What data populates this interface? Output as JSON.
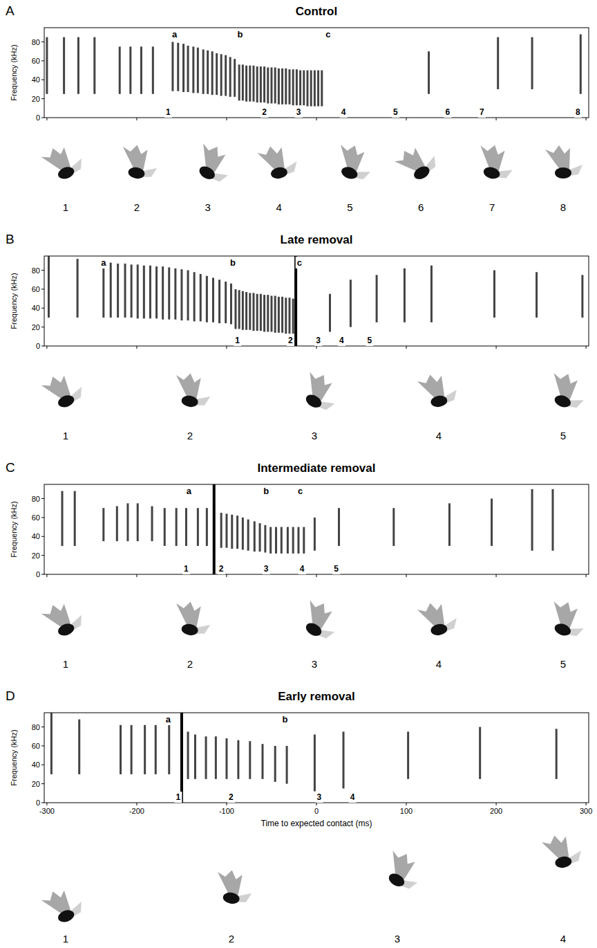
{
  "chart_data": [
    {
      "type": "spectrogram",
      "panel": "A",
      "title": "Control",
      "y_label": "Frequency (kHz)",
      "xlim": [
        -303,
        303
      ],
      "ylim": [
        0,
        95
      ],
      "xticks": [
        -300,
        -200,
        -100,
        0,
        100,
        200,
        300
      ],
      "yticks": [
        0,
        20,
        40,
        60,
        80
      ],
      "tick_labels": "y",
      "color": "#222222",
      "calls": {
        "x": [
          -300,
          -281,
          -265,
          -247,
          -219,
          -207,
          -195,
          -182,
          -160,
          -154,
          -148,
          -143,
          -137,
          -132,
          -126,
          -121,
          -116,
          -111,
          -106,
          -101,
          -96,
          -91,
          -86,
          -82,
          -78,
          -74,
          -70,
          -66,
          -62,
          -58,
          -54,
          -50,
          -46,
          -42,
          -38,
          -34,
          -30,
          -26,
          -22,
          -18,
          -14,
          -10,
          -6,
          -2,
          2,
          6,
          125,
          202,
          240,
          294
        ],
        "f_low": [
          25,
          25,
          25,
          25,
          25,
          25,
          25,
          25,
          28,
          28,
          27,
          27,
          26,
          26,
          25,
          25,
          24,
          24,
          23,
          23,
          22,
          22,
          18,
          18,
          17,
          17,
          17,
          16,
          16,
          16,
          15,
          15,
          15,
          14,
          14,
          14,
          14,
          13,
          13,
          13,
          13,
          12,
          12,
          12,
          12,
          12,
          25,
          30,
          30,
          25
        ],
        "f_high": [
          85,
          85,
          85,
          85,
          75,
          75,
          75,
          75,
          80,
          79,
          78,
          76,
          75,
          74,
          72,
          71,
          70,
          68,
          67,
          66,
          64,
          62,
          56,
          56,
          55,
          55,
          55,
          54,
          54,
          54,
          53,
          53,
          53,
          52,
          52,
          52,
          51,
          51,
          51,
          50,
          50,
          50,
          50,
          50,
          50,
          50,
          70,
          85,
          85,
          88
        ]
      },
      "phase_labels": {
        "labels": [
          "a",
          "b",
          "c"
        ],
        "x": [
          -158,
          -85,
          13
        ]
      },
      "frame_labels": {
        "labels": [
          "1",
          "2",
          "3",
          "4",
          "5",
          "6",
          "7",
          "8"
        ],
        "x": [
          -165,
          -58,
          -20,
          30,
          88,
          146,
          184,
          291
        ]
      },
      "silhouette_labels": [
        "1",
        "2",
        "3",
        "4",
        "5",
        "6",
        "7",
        "8"
      ]
    },
    {
      "type": "spectrogram",
      "panel": "B",
      "title": "Late removal",
      "y_label": "Frequency (kHz)",
      "xlim": [
        -303,
        303
      ],
      "ylim": [
        0,
        95
      ],
      "xticks": [
        -300,
        -200,
        -100,
        0,
        100,
        200,
        300
      ],
      "yticks": [
        0,
        20,
        40,
        60,
        80
      ],
      "tick_labels": "y",
      "color": "#222222",
      "removal": -23,
      "calls": {
        "x": [
          -298,
          -266,
          -237,
          -229,
          -221,
          -213,
          -206,
          -199,
          -192,
          -185,
          -178,
          -171,
          -164,
          -157,
          -150,
          -143,
          -136,
          -129,
          -122,
          -115,
          -108,
          -101,
          -95,
          -90,
          -86,
          -82,
          -78,
          -74,
          -70,
          -66,
          -62,
          -58,
          -54,
          -50,
          -46,
          -42,
          -38,
          -34,
          -30,
          -26,
          15,
          38,
          67,
          98,
          128,
          198,
          245,
          296
        ],
        "f_low": [
          30,
          30,
          30,
          30,
          30,
          30,
          30,
          29,
          29,
          29,
          29,
          28,
          28,
          28,
          27,
          27,
          26,
          26,
          25,
          25,
          24,
          24,
          23,
          18,
          18,
          17,
          17,
          17,
          16,
          16,
          16,
          15,
          15,
          15,
          14,
          14,
          14,
          13,
          13,
          13,
          15,
          20,
          25,
          25,
          25,
          30,
          30,
          30
        ],
        "f_high": [
          95,
          92,
          88,
          88,
          87,
          87,
          86,
          86,
          85,
          85,
          84,
          84,
          83,
          82,
          81,
          80,
          78,
          76,
          74,
          72,
          70,
          68,
          66,
          60,
          59,
          58,
          57,
          56,
          56,
          55,
          55,
          54,
          54,
          53,
          53,
          52,
          52,
          51,
          51,
          50,
          55,
          70,
          75,
          82,
          85,
          80,
          78,
          75
        ]
      },
      "phase_labels": {
        "labels": [
          "a",
          "b",
          "c"
        ],
        "x": [
          -237,
          -93,
          -19
        ]
      },
      "frame_labels": {
        "labels": [
          "1",
          "2",
          "3",
          "4",
          "5"
        ],
        "x": [
          -88,
          -29,
          2,
          28,
          59
        ]
      },
      "silhouette_labels": [
        "1",
        "2",
        "3",
        "4",
        "5"
      ]
    },
    {
      "type": "spectrogram",
      "panel": "C",
      "title": "Intermediate removal",
      "y_label": "Frequency (kHz)",
      "xlim": [
        -303,
        303
      ],
      "ylim": [
        0,
        95
      ],
      "xticks": [
        -300,
        -200,
        -100,
        0,
        100,
        200,
        300
      ],
      "yticks": [
        0,
        20,
        40,
        60,
        80
      ],
      "tick_labels": "y",
      "color": "#222222",
      "removal": -114,
      "calls": {
        "x": [
          -283,
          -269,
          -237,
          -222,
          -210,
          -199,
          -183,
          -169,
          -156,
          -145,
          -132,
          -122,
          -106,
          -100,
          -94,
          -88,
          -82,
          -76,
          -69,
          -63,
          -57,
          -51,
          -45,
          -39,
          -32,
          -26,
          -20,
          -14,
          -2,
          25,
          86,
          148,
          195,
          240,
          263
        ],
        "f_low": [
          30,
          30,
          35,
          35,
          35,
          35,
          35,
          30,
          30,
          30,
          30,
          30,
          28,
          28,
          27,
          27,
          26,
          25,
          24,
          24,
          23,
          22,
          22,
          22,
          22,
          22,
          22,
          22,
          25,
          30,
          30,
          30,
          30,
          25,
          25
        ],
        "f_high": [
          88,
          88,
          70,
          72,
          75,
          75,
          72,
          70,
          70,
          70,
          70,
          70,
          65,
          64,
          63,
          62,
          60,
          58,
          56,
          54,
          52,
          50,
          50,
          50,
          50,
          50,
          50,
          50,
          60,
          70,
          70,
          75,
          80,
          90,
          90
        ]
      },
      "phase_labels": {
        "labels": [
          "a",
          "b",
          "c"
        ],
        "x": [
          -142,
          -56,
          -18
        ]
      },
      "frame_labels": {
        "labels": [
          "1",
          "2",
          "3",
          "4",
          "5"
        ],
        "x": [
          -145,
          -106,
          -56,
          -16,
          22
        ]
      },
      "silhouette_labels": [
        "1",
        "2",
        "3",
        "4",
        "5"
      ]
    },
    {
      "type": "spectrogram",
      "panel": "D",
      "title": "Early removal",
      "y_label": "Frequency (kHz)",
      "x_label": "Time to expected contact (ms)",
      "xlim": [
        -303,
        303
      ],
      "ylim": [
        0,
        95
      ],
      "xticks": [
        -300,
        -200,
        -100,
        0,
        100,
        200,
        300
      ],
      "yticks": [
        0,
        20,
        40,
        60,
        80
      ],
      "tick_labels": true,
      "color": "#222222",
      "removal": -150,
      "calls": {
        "x": [
          -295,
          -264,
          -218,
          -206,
          -191,
          -179,
          -164,
          -143,
          -135,
          -123,
          -112,
          -100,
          -87,
          -74,
          -60,
          -46,
          -33,
          -2,
          30,
          102,
          182,
          267
        ],
        "f_low": [
          30,
          30,
          30,
          30,
          30,
          30,
          30,
          25,
          25,
          25,
          25,
          25,
          25,
          25,
          25,
          22,
          20,
          12,
          15,
          25,
          25,
          25
        ],
        "f_high": [
          95,
          88,
          82,
          82,
          82,
          82,
          85,
          75,
          72,
          70,
          70,
          68,
          66,
          65,
          62,
          60,
          60,
          72,
          75,
          75,
          80,
          78
        ]
      },
      "phase_labels": {
        "labels": [
          "a",
          "b"
        ],
        "x": [
          -165,
          -35
        ]
      },
      "frame_labels": {
        "labels": [
          "1",
          "2",
          "3",
          "4"
        ],
        "x": [
          -154,
          -95,
          3,
          40
        ]
      },
      "silhouette_labels": [
        "1",
        "2",
        "3",
        "4"
      ]
    }
  ]
}
